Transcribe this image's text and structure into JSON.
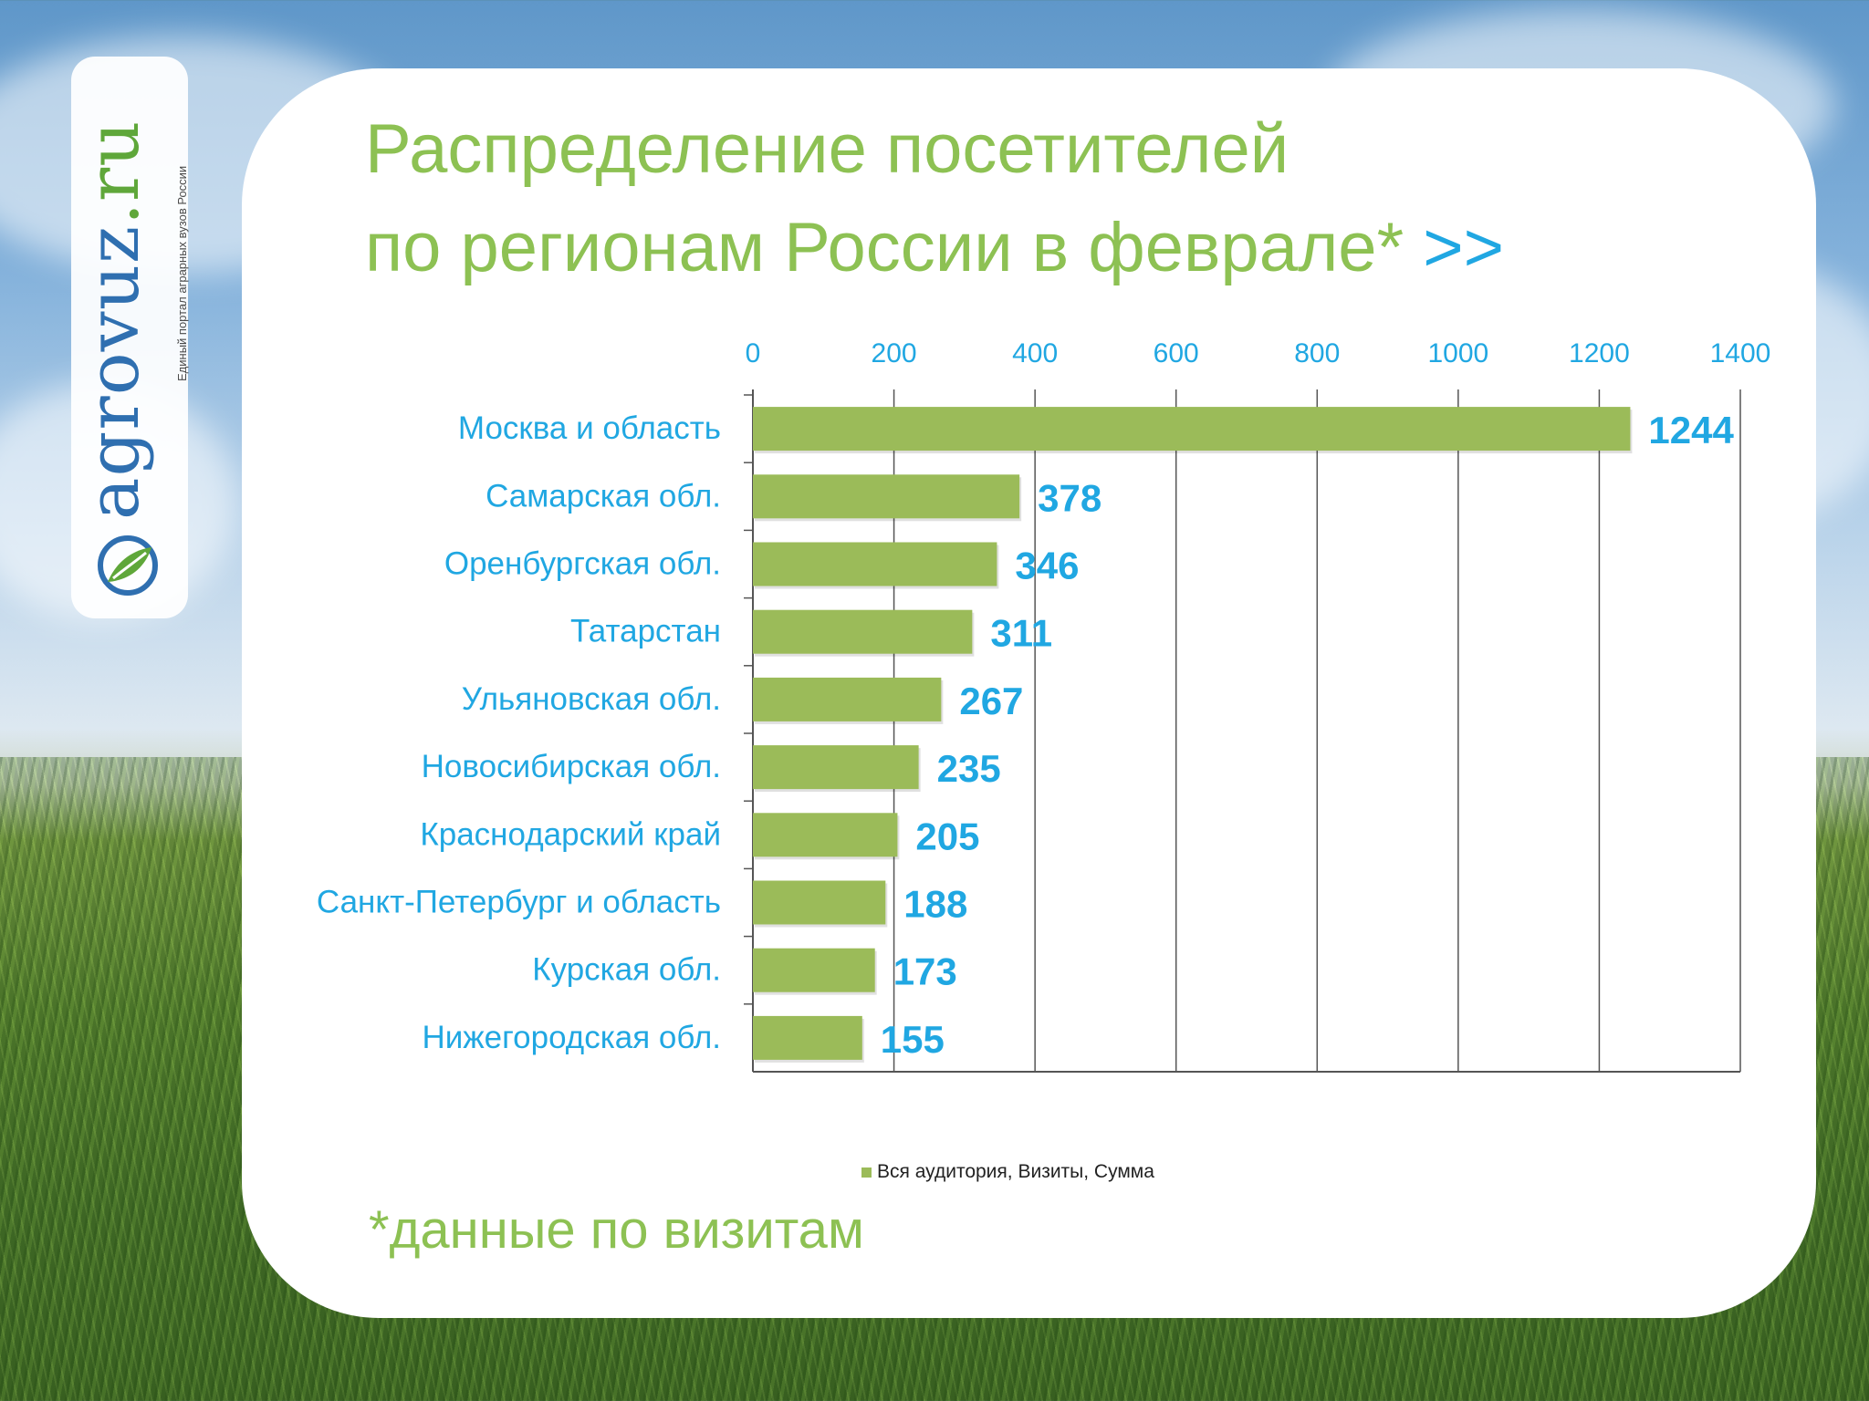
{
  "logo": {
    "word_main": "agrovuz",
    "word_suffix": ".ru",
    "tagline": "Единый портал аграрных вузов России"
  },
  "title": {
    "line1": "Распределение посетителей",
    "line2": "по регионам России  в феврале* ",
    "arrows": ">>"
  },
  "footnote": "*данные по визитам",
  "colors": {
    "accent_green": "#8dc153",
    "bar_green": "#9bbb59",
    "label_blue": "#20a7e2"
  },
  "chart_data": {
    "type": "bar",
    "orientation": "horizontal",
    "categories": [
      "Москва и область",
      "Самарская обл.",
      "Оренбургская обл.",
      "Татарстан",
      "Ульяновская обл.",
      "Новосибирская обл.",
      "Краснодарский край",
      "Санкт-Петербург и область",
      "Курская обл.",
      "Нижегородская обл."
    ],
    "series": [
      {
        "name": "Вся аудитория, Визиты, Сумма",
        "values": [
          1244,
          378,
          346,
          311,
          267,
          235,
          205,
          188,
          173,
          155
        ]
      }
    ],
    "xlim": [
      0,
      1400
    ],
    "xticks": [
      "0",
      "200",
      "400",
      "600",
      "800",
      "1000",
      "1200",
      "1400"
    ],
    "xaxis_position": "top",
    "grid": true,
    "legend_position": "bottom"
  }
}
